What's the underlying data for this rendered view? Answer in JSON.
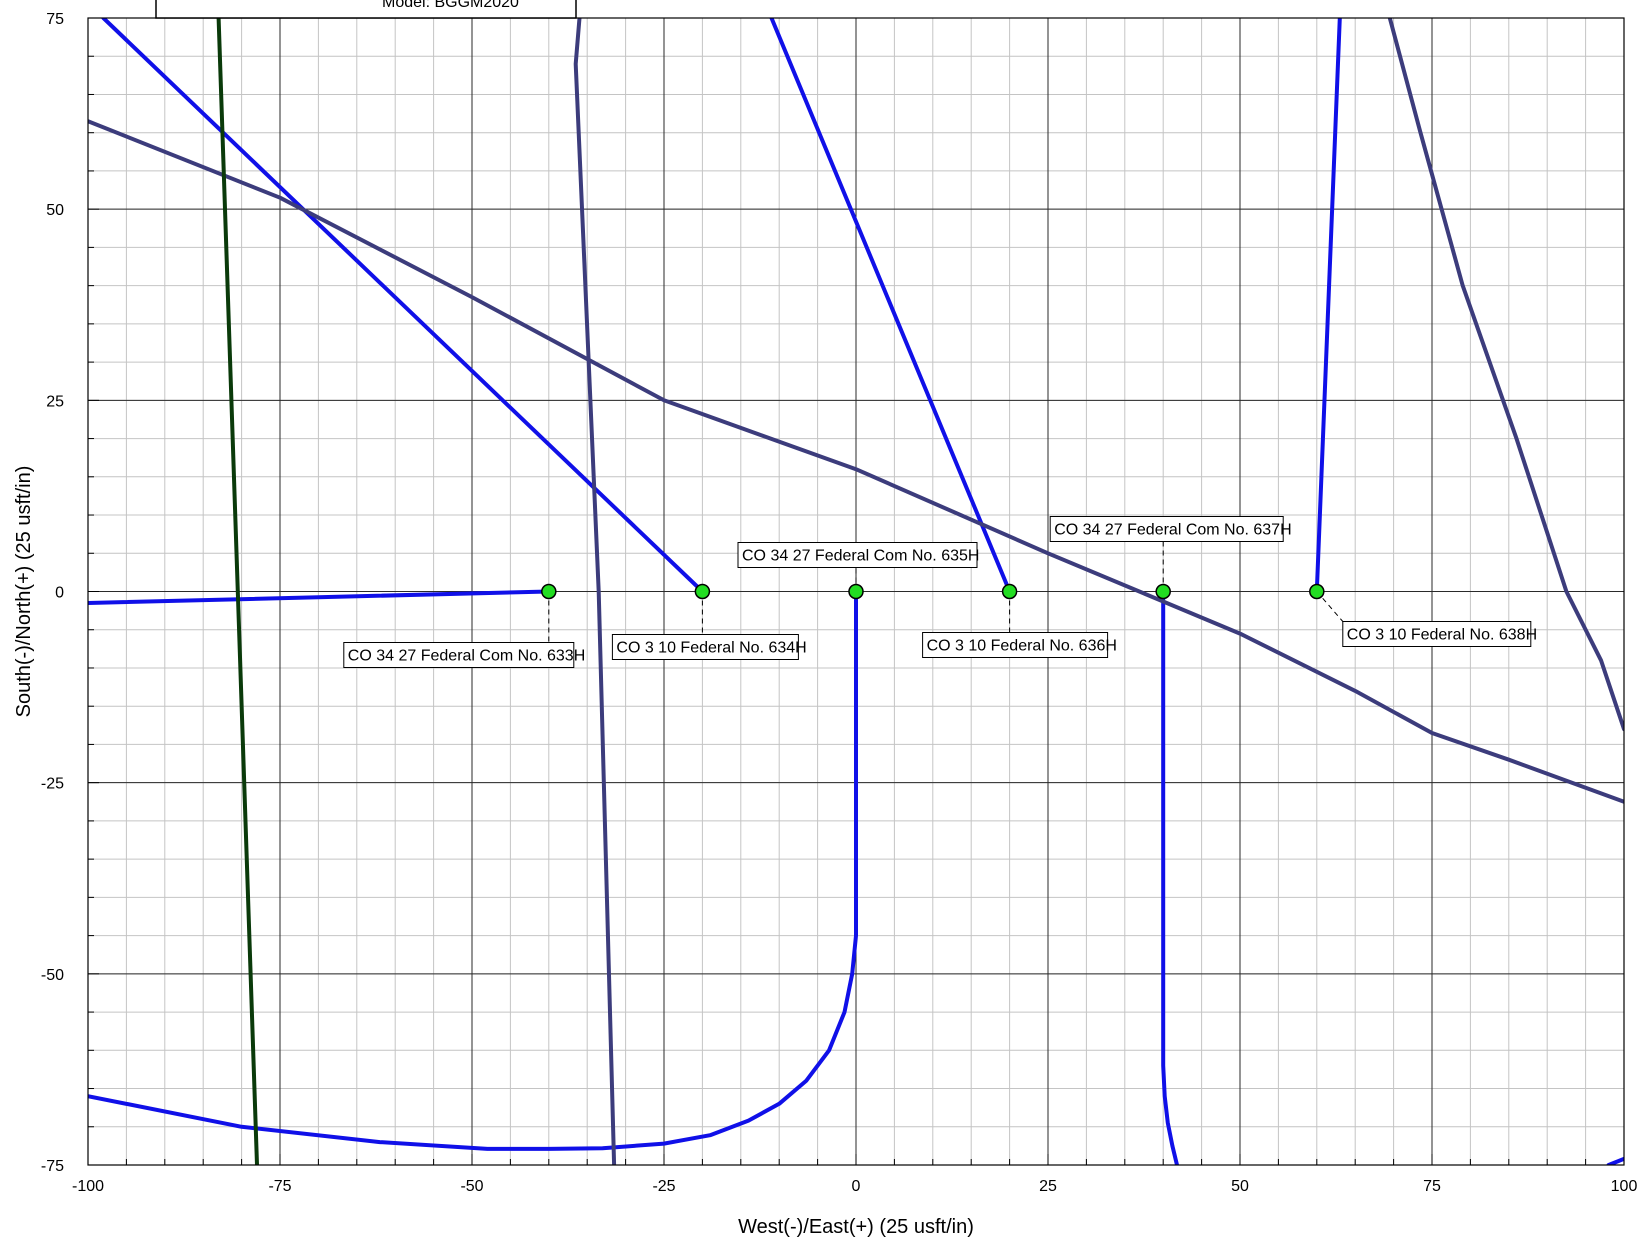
{
  "chart_data": {
    "type": "line",
    "xlabel": "West(-)/East(+) (25 usft/in)",
    "ylabel": "South(-)/North(+) (25 usft/in)",
    "xlim": [
      -100,
      100
    ],
    "ylim": [
      -75,
      75
    ],
    "x_ticks": [
      -100,
      -75,
      -50,
      -25,
      0,
      25,
      50,
      75,
      100
    ],
    "y_ticks": [
      -75,
      -50,
      -25,
      0,
      25,
      50,
      75
    ],
    "grid": true,
    "legend_partial_text": "Model: BGGM2020",
    "colors": {
      "well_path": "#1010e8",
      "offset_navy": "#3c3c7c",
      "offset_green": "#0a3a0a",
      "well_marker": "#22dd22"
    },
    "wells": [
      {
        "label": "CO 34 27 Federal Com No. 633H",
        "x": -40,
        "y": 0
      },
      {
        "label": "CO 3 10 Federal No. 634H",
        "x": -20,
        "y": 0
      },
      {
        "label": "CO 34 27 Federal Com No. 635H",
        "x": 0,
        "y": 0
      },
      {
        "label": "CO 3 10 Federal No. 636H",
        "x": 20,
        "y": 0
      },
      {
        "label": "CO 34 27 Federal Com No. 637H",
        "x": 40,
        "y": 0
      },
      {
        "label": "CO 3 10 Federal No. 638H",
        "x": 60,
        "y": 0
      }
    ],
    "series": [
      {
        "color": "#1010e8",
        "points": [
          [
            -40,
            0
          ],
          [
            -100,
            -1.5
          ]
        ]
      },
      {
        "color": "#1010e8",
        "points": [
          [
            -20,
            0
          ],
          [
            -98,
            75
          ]
        ]
      },
      {
        "color": "#1010e8",
        "points": [
          [
            0,
            0
          ],
          [
            0,
            -45
          ],
          [
            -0.5,
            -50
          ],
          [
            -1.5,
            -55
          ],
          [
            -3.5,
            -60
          ],
          [
            -6.5,
            -64
          ],
          [
            -10,
            -67
          ],
          [
            -14,
            -69.2
          ],
          [
            -19,
            -71.1
          ],
          [
            -25,
            -72.2
          ],
          [
            -33,
            -72.8
          ],
          [
            -40,
            -72.9
          ],
          [
            -48,
            -72.9
          ],
          [
            -62,
            -72
          ],
          [
            -80,
            -70
          ],
          [
            -100,
            -66
          ]
        ]
      },
      {
        "color": "#1010e8",
        "points": [
          [
            20,
            0
          ],
          [
            -11,
            75
          ]
        ]
      },
      {
        "color": "#1010e8",
        "points": [
          [
            40,
            0
          ],
          [
            40,
            -62
          ],
          [
            40.2,
            -66
          ],
          [
            40.6,
            -69.5
          ],
          [
            41.2,
            -72.5
          ],
          [
            41.8,
            -75
          ]
        ]
      },
      {
        "color": "#1010e8",
        "points": [
          [
            60,
            0
          ],
          [
            63,
            75
          ]
        ]
      },
      {
        "color": "#1010e8",
        "points": [
          [
            98,
            -75
          ],
          [
            100,
            -74.2
          ]
        ]
      },
      {
        "color": "#3c3c7c",
        "points": [
          [
            -100,
            61.5
          ],
          [
            -75,
            51.5
          ],
          [
            -50,
            38.5
          ],
          [
            -25,
            25
          ],
          [
            0,
            16
          ],
          [
            25,
            5
          ],
          [
            50,
            -5.5
          ],
          [
            65,
            -13
          ],
          [
            75,
            -18.5
          ],
          [
            85,
            -22
          ],
          [
            100,
            -27.5
          ]
        ]
      },
      {
        "color": "#3c3c7c",
        "points": [
          [
            -36,
            75
          ],
          [
            -36.5,
            69
          ],
          [
            -33.5,
            0
          ],
          [
            -31.5,
            -75
          ]
        ]
      },
      {
        "color": "#3c3c7c",
        "points": [
          [
            69.5,
            75
          ],
          [
            73.5,
            60
          ],
          [
            79,
            40
          ],
          [
            86,
            20
          ],
          [
            92.5,
            0
          ],
          [
            97,
            -9
          ],
          [
            100,
            -18
          ]
        ]
      },
      {
        "color": "#0a3a0a",
        "points": [
          [
            -83,
            75
          ],
          [
            -78,
            -75
          ]
        ]
      }
    ]
  }
}
